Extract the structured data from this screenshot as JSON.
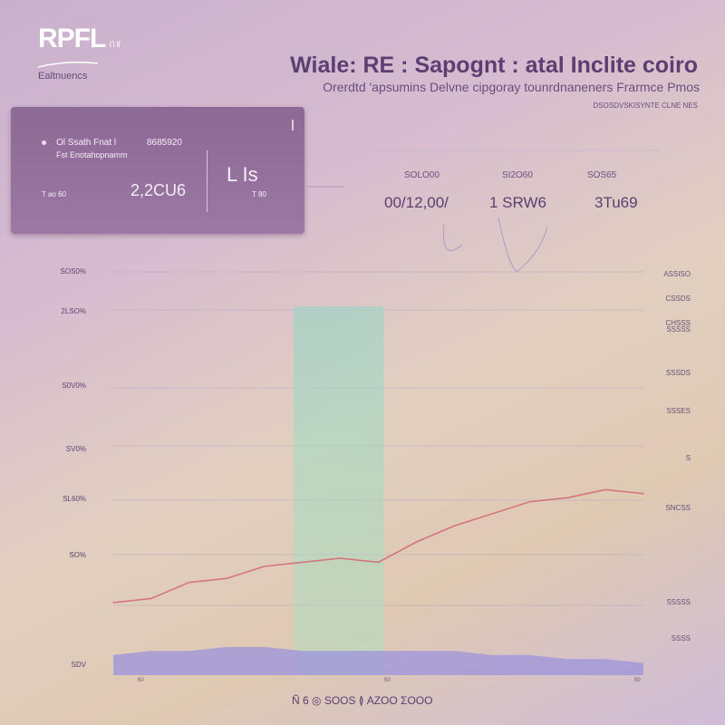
{
  "header": {
    "logo": "RPFL",
    "logo_sup": "n ir",
    "logo_sub": "Ealtnuencs",
    "title": "Wiale: RE : Sapognt : atal Inclite coiro",
    "subtitle": "Orerdtd 'apsumins Delvne cipgoray tounrdnaneners Frarmce Pmos",
    "tagline": "DSOSDVSKISYNTE CLNE NES"
  },
  "card": {
    "heading": "Ol Ssath Fnat l",
    "sublabel": "Fst Enotahopnamm",
    "value_label": "8685920",
    "small_text": "T ao 60",
    "big_value": "2,2CU6",
    "right_title": "L Is",
    "right_sub": "T 80"
  },
  "stats": [
    {
      "label": "SOLO00",
      "value": "00/12,00/"
    },
    {
      "label": "SI2O60",
      "value": "1 SRW6"
    },
    {
      "label": "SOS65",
      "value": "3Tu69"
    }
  ],
  "chart_data": {
    "type": "line",
    "y_ticks_left": [
      "SOS0%",
      "2LSO%",
      "S0V0%",
      "SV0%",
      "SL60%",
      "SO%",
      "SDV"
    ],
    "y_ticks_right": [
      "ASSISO",
      "CSSDS",
      "CHSSS",
      "SSSSS",
      "SSSDS",
      "SSSES",
      "S",
      "SNCSS",
      "SSSSS",
      "SSSS"
    ],
    "x_ticks": [
      "S0",
      "S0",
      "S0"
    ],
    "x": [
      0,
      1,
      2,
      3,
      4,
      5,
      6,
      7,
      8,
      9,
      10,
      11,
      12,
      13,
      14
    ],
    "series": [
      {
        "color": "#d4767c",
        "values": [
          18,
          19,
          23,
          24,
          27,
          28,
          29,
          28,
          33,
          37,
          40,
          43,
          44,
          46,
          45
        ]
      },
      {
        "color": "#9c93dc",
        "values": [
          5,
          6,
          6,
          7,
          7,
          6,
          6,
          6,
          6,
          6,
          5,
          5,
          4,
          4,
          3
        ]
      }
    ],
    "highlight_band": {
      "from": 5,
      "to": 7
    }
  },
  "footer": {
    "caption": "Ñ 6  ◎ SOOS ≬ ΑΖΟΟ ΣΟΟΟ"
  }
}
